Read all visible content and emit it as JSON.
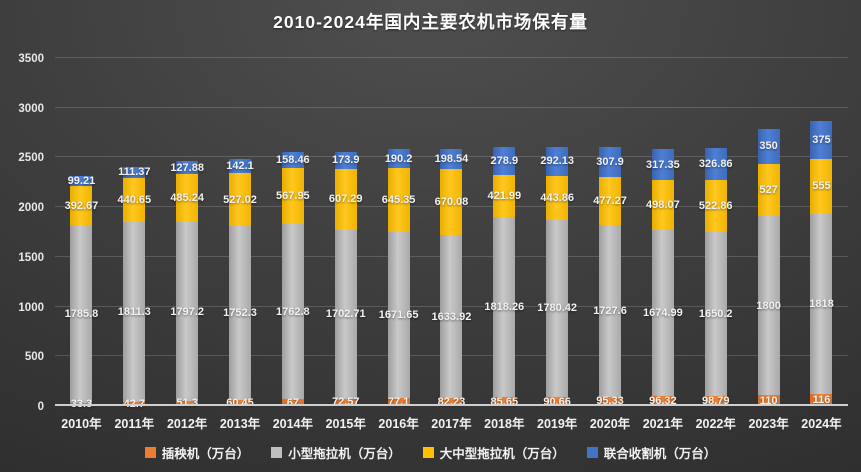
{
  "title": "2010-2024年国内主要农机市场保有量",
  "chart_data": {
    "type": "bar",
    "stacked": true,
    "title": "2010-2024年国内主要农机市场保有量",
    "categories": [
      "2010年",
      "2011年",
      "2012年",
      "2013年",
      "2014年",
      "2015年",
      "2016年",
      "2017年",
      "2018年",
      "2019年",
      "2020年",
      "2021年",
      "2022年",
      "2023年",
      "2024年"
    ],
    "series": [
      {
        "name": "插秧机（万台）",
        "color": "#ED7D31",
        "values": [
          33.3,
          42.7,
          51.3,
          60.45,
          67,
          72.57,
          77.1,
          82.23,
          85.65,
          90.66,
          95.33,
          96.32,
          98.79,
          110,
          116
        ]
      },
      {
        "name": "小型拖拉机（万台）",
        "color": "#BFBFBF",
        "values": [
          1785.8,
          1811.3,
          1797.2,
          1752.3,
          1762.8,
          1702.71,
          1671.65,
          1633.92,
          1818.26,
          1780.42,
          1727.6,
          1674.99,
          1650.2,
          1800,
          1818
        ]
      },
      {
        "name": "大中型拖拉机（万台）",
        "color": "#FFC000",
        "values": [
          392.67,
          440.65,
          485.24,
          527.02,
          567.95,
          607.29,
          645.35,
          670.08,
          421.99,
          443.86,
          477.27,
          498.07,
          522.86,
          527,
          555
        ]
      },
      {
        "name": "联合收割机（万台）",
        "color": "#4472C4",
        "values": [
          99.21,
          111.37,
          127.88,
          142.1,
          158.46,
          173.9,
          190.2,
          198.54,
          278.9,
          292.13,
          307.9,
          317.35,
          326.86,
          350,
          375
        ]
      }
    ],
    "ylim": [
      0,
      3500
    ],
    "yticks": [
      0,
      500,
      1000,
      1500,
      2000,
      2500,
      3000,
      3500
    ],
    "grid": true,
    "legend_position": "bottom",
    "background": "#3d3d3d"
  }
}
